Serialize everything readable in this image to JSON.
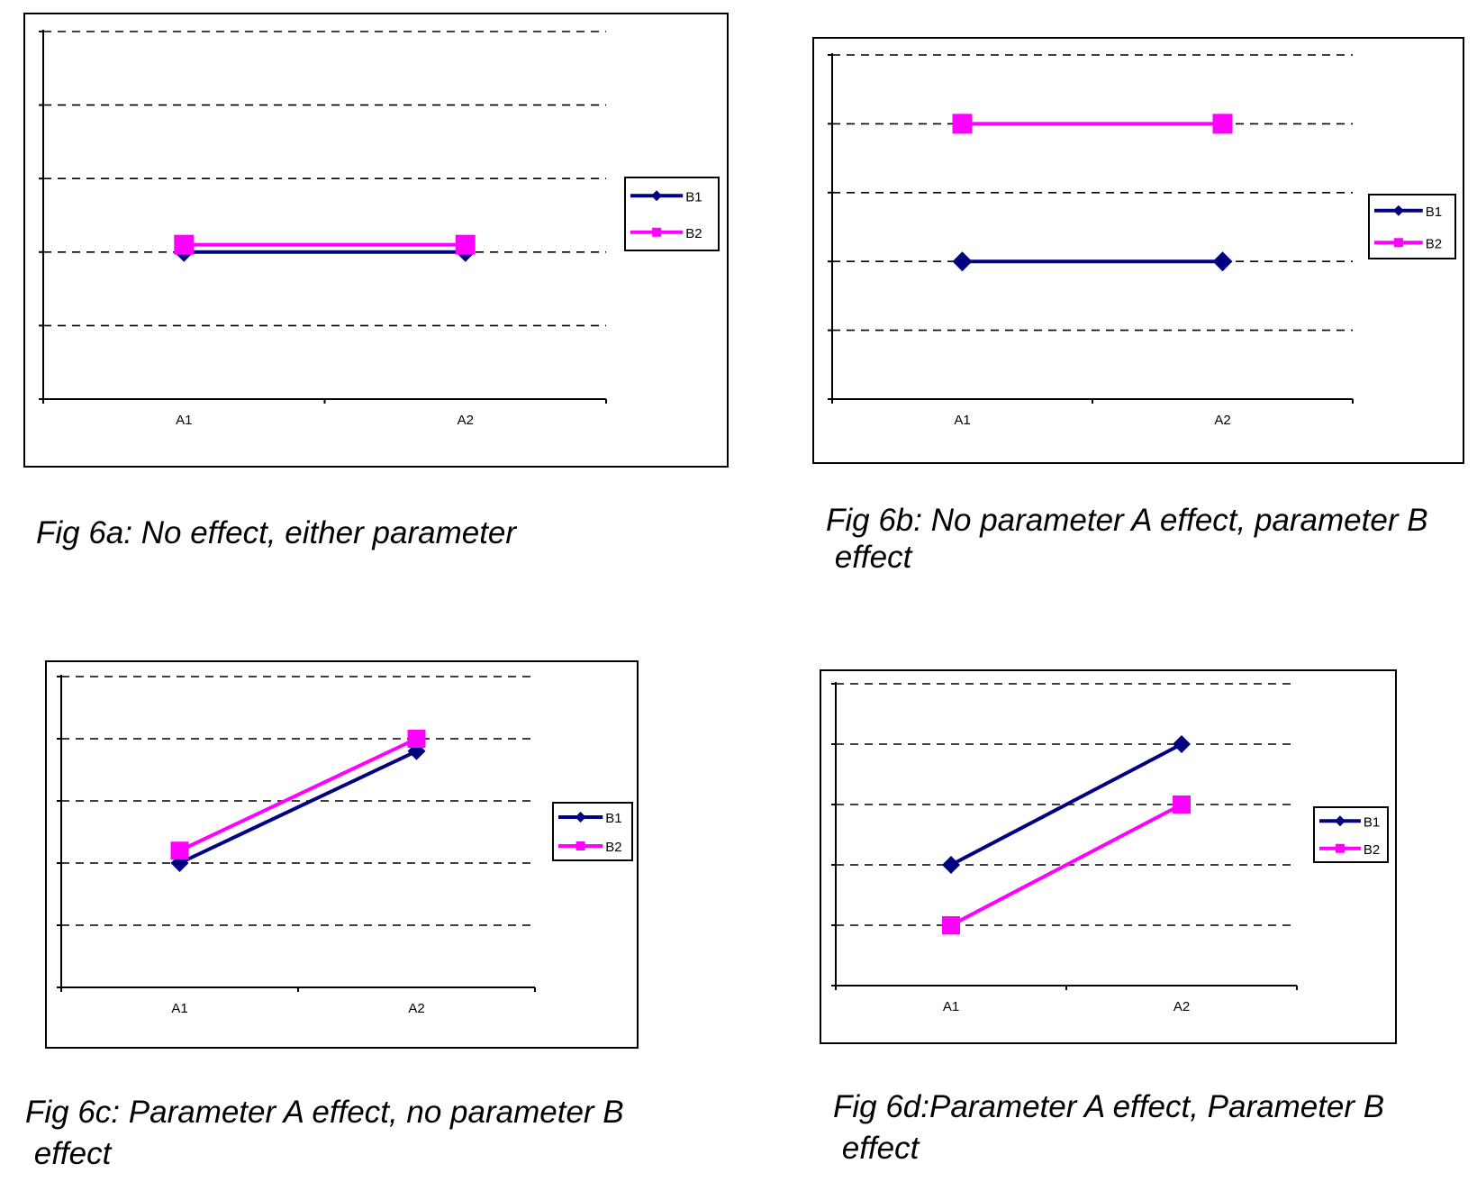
{
  "series_colors": {
    "B1": "#000080",
    "B2": "#ff00ff"
  },
  "chart_data": [
    {
      "id": "fig6a",
      "type": "line",
      "caption_lines": [
        "Fig 6a: No effect, either parameter"
      ],
      "categories": [
        "A1",
        "A2"
      ],
      "ylim": [
        0,
        5
      ],
      "grid": "dashed horizontal",
      "legend_placement": "right",
      "series": [
        {
          "name": "B1",
          "marker": "diamond",
          "values": [
            2,
            2
          ]
        },
        {
          "name": "B2",
          "marker": "square",
          "values": [
            2.1,
            2.1
          ]
        }
      ]
    },
    {
      "id": "fig6b",
      "type": "line",
      "caption_lines": [
        "Fig 6b: No parameter A effect, parameter B",
        " effect"
      ],
      "categories": [
        "A1",
        "A2"
      ],
      "ylim": [
        0,
        5
      ],
      "grid": "dashed horizontal",
      "legend_placement": "right",
      "series": [
        {
          "name": "B1",
          "marker": "diamond",
          "values": [
            2,
            2
          ]
        },
        {
          "name": "B2",
          "marker": "square",
          "values": [
            4,
            4
          ]
        }
      ]
    },
    {
      "id": "fig6c",
      "type": "line",
      "caption_lines": [
        "Fig 6c: Parameter A effect, no parameter B",
        " effect"
      ],
      "categories": [
        "A1",
        "A2"
      ],
      "ylim": [
        0,
        5
      ],
      "grid": "dashed horizontal",
      "legend_placement": "right",
      "series": [
        {
          "name": "B1",
          "marker": "diamond",
          "values": [
            2,
            3.8
          ]
        },
        {
          "name": "B2",
          "marker": "square",
          "values": [
            2.2,
            4
          ]
        }
      ]
    },
    {
      "id": "fig6d",
      "type": "line",
      "caption_lines": [
        "Fig 6d:Parameter A effect, Parameter B",
        " effect"
      ],
      "categories": [
        "A1",
        "A2"
      ],
      "ylim": [
        0,
        5
      ],
      "grid": "dashed horizontal",
      "legend_placement": "right",
      "series": [
        {
          "name": "B1",
          "marker": "diamond",
          "values": [
            2,
            4
          ]
        },
        {
          "name": "B2",
          "marker": "square",
          "values": [
            1,
            3
          ]
        }
      ]
    }
  ]
}
